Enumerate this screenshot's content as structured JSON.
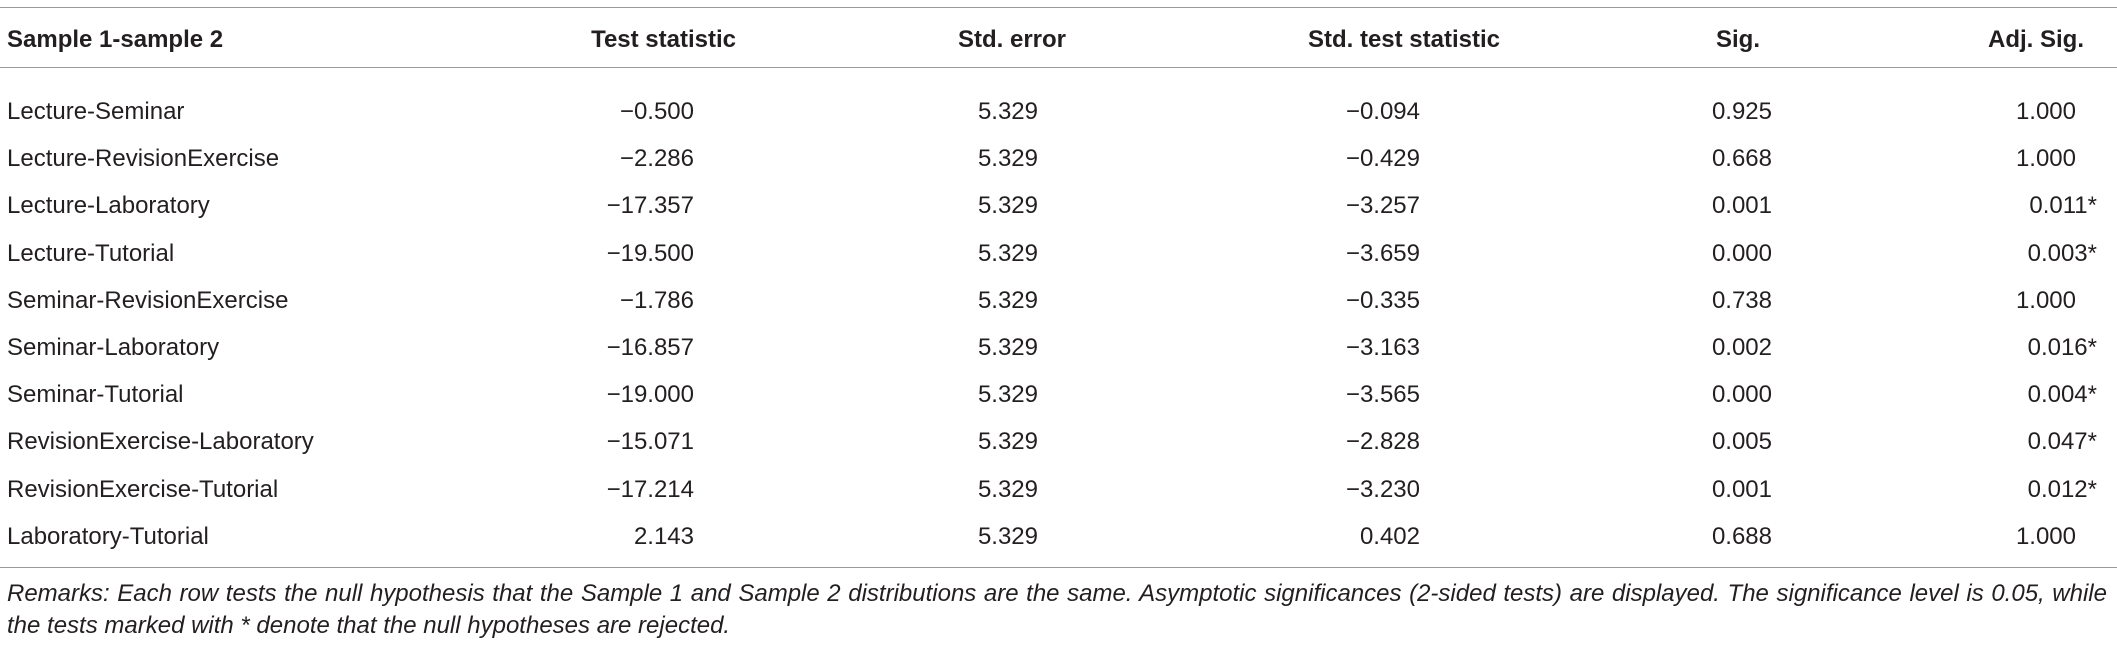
{
  "table": {
    "columns": [
      "Sample 1-sample 2",
      "Test statistic",
      "Std. error",
      "Std. test statistic",
      "Sig.",
      "Adj. Sig."
    ],
    "rows": [
      [
        "Lecture-Seminar",
        "−0.500",
        "5.329",
        "−0.094",
        "0.925",
        "1.000"
      ],
      [
        "Lecture-RevisionExercise",
        "−2.286",
        "5.329",
        "−0.429",
        "0.668",
        "1.000"
      ],
      [
        "Lecture-Laboratory",
        "−17.357",
        "5.329",
        "−3.257",
        "0.001",
        "0.011*"
      ],
      [
        "Lecture-Tutorial",
        "−19.500",
        "5.329",
        "−3.659",
        "0.000",
        "0.003*"
      ],
      [
        "Seminar-RevisionExercise",
        "−1.786",
        "5.329",
        "−0.335",
        "0.738",
        "1.000"
      ],
      [
        "Seminar-Laboratory",
        "−16.857",
        "5.329",
        "−3.163",
        "0.002",
        "0.016*"
      ],
      [
        "Seminar-Tutorial",
        "−19.000",
        "5.329",
        "−3.565",
        "0.000",
        "0.004*"
      ],
      [
        "RevisionExercise-Laboratory",
        "−15.071",
        "5.329",
        "−2.828",
        "0.005",
        "0.047*"
      ],
      [
        "RevisionExercise-Tutorial",
        "−17.214",
        "5.329",
        "−3.230",
        "0.001",
        "0.012*"
      ],
      [
        "Laboratory-Tutorial",
        "2.143",
        "5.329",
        "0.402",
        "0.688",
        "1.000"
      ]
    ],
    "remarks": "Remarks: Each row tests the null hypothesis that the Sample 1 and Sample 2 distributions are the same. Asymptotic significances (2-sided tests) are displayed. The significance level is 0.05, while the tests marked with * denote that the null hypotheses are rejected."
  }
}
